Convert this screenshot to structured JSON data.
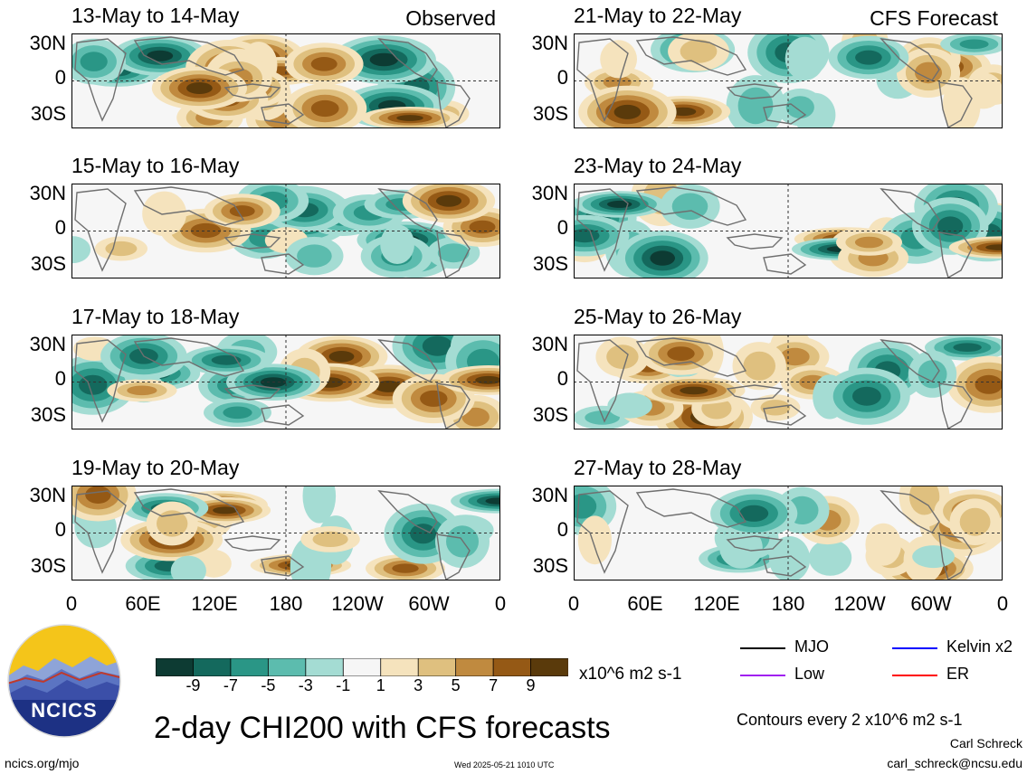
{
  "panels_left_label": "Observed",
  "panels_right_label": "CFS Forecast",
  "panels": [
    {
      "id": "p1",
      "title": "13-May to 14-May",
      "column": "left",
      "row": 0,
      "label": "Observed"
    },
    {
      "id": "p2",
      "title": "15-May to 16-May",
      "column": "left",
      "row": 1
    },
    {
      "id": "p3",
      "title": "17-May to 18-May",
      "column": "left",
      "row": 2
    },
    {
      "id": "p4",
      "title": "19-May to 20-May",
      "column": "left",
      "row": 3
    },
    {
      "id": "p5",
      "title": "21-May to 22-May",
      "column": "right",
      "row": 0,
      "label": "CFS Forecast"
    },
    {
      "id": "p6",
      "title": "23-May to 24-May",
      "column": "right",
      "row": 1
    },
    {
      "id": "p7",
      "title": "25-May to 26-May",
      "column": "right",
      "row": 2
    },
    {
      "id": "p8",
      "title": "27-May to 28-May",
      "column": "right",
      "row": 3
    }
  ],
  "lat_labels": [
    "30N",
    "0",
    "30S"
  ],
  "lon_labels": [
    "0",
    "60E",
    "120E",
    "180",
    "120W",
    "60W",
    "0"
  ],
  "colorbar": {
    "colors": [
      "#0d3b33",
      "#14695d",
      "#2a9686",
      "#5cbcae",
      "#a4dcd3",
      "#f6f6f6",
      "#f5e3bd",
      "#dfc07f",
      "#c08a3f",
      "#955915",
      "#5a3a0b"
    ],
    "tick_labels": [
      "-9",
      "-7",
      "-5",
      "-3",
      "-1",
      "1",
      "3",
      "5",
      "7",
      "9"
    ],
    "units": "x10^6 m2 s-1"
  },
  "legend": [
    {
      "name": "MJO",
      "color": "#000000"
    },
    {
      "name": "Kelvin x2",
      "color": "#0000ff"
    },
    {
      "name": "Low",
      "color": "#a020f0"
    },
    {
      "name": "ER",
      "color": "#ff0000"
    }
  ],
  "contours_note": "Contours every 2 x10^6 m2 s-1",
  "main_title": "2-day CHI200 with CFS forecasts",
  "logo_text": "NCICS",
  "footer": {
    "site": "ncics.org/mjo",
    "timestamp": "Wed 2025-05-21 1010 UTC",
    "author": "Carl Schreck",
    "email": "carl_schreck@ncsu.edu"
  }
}
